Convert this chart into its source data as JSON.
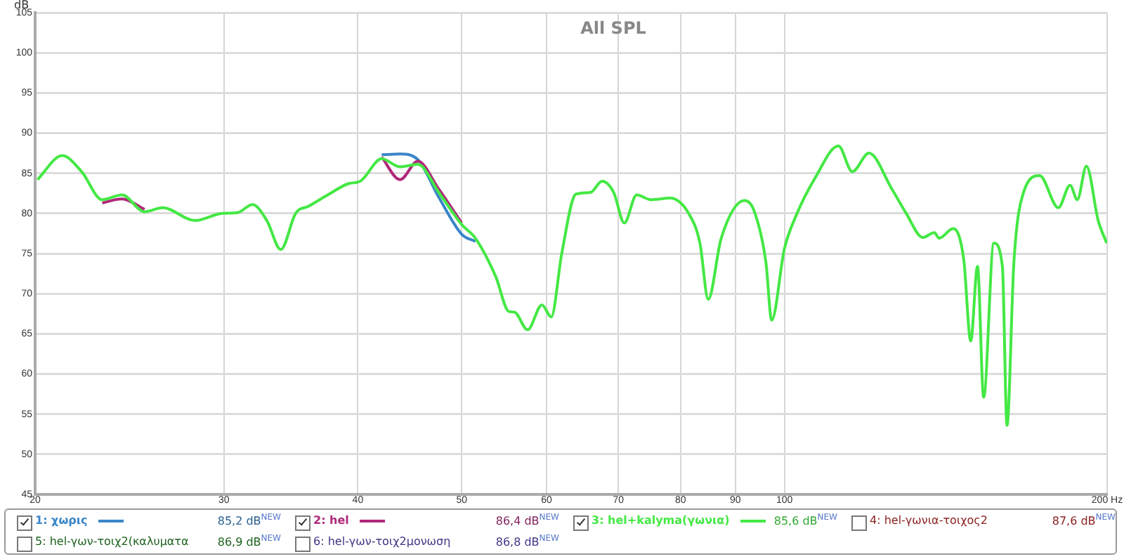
{
  "chart_data": {
    "type": "line",
    "title": "All SPL",
    "ylabel": "dB",
    "log": "x",
    "grid": true,
    "legend": "bottom",
    "marker": "none",
    "line_style": "solid",
    "x": [
      20.1,
      21.2,
      22.1,
      23.1,
      24.1,
      25.3,
      26.3,
      28.2,
      29.9,
      30.9,
      31.9,
      32.9,
      33.9,
      35.0,
      36.0,
      37.5,
      39.2,
      40.2,
      42.1,
      43.8,
      45.5,
      47.6,
      50.0,
      51.5,
      53.8,
      55.3,
      56.0,
      57.6,
      59.4,
      60.6,
      62.0,
      63.9,
      65.9,
      67.6,
      69.3,
      70.9,
      72.8,
      75.1,
      78.2,
      81.4,
      83.4,
      84.9,
      87.3,
      91.8,
      93.7,
      96.1,
      97.3,
      100,
      102.6,
      106.8,
      112.3,
      115.7,
      119.9,
      126.0,
      129.9,
      134.6,
      138.0,
      139.4,
      143.7,
      147.0,
      149.2,
      151.4,
      153.4,
      156.8,
      159.7,
      161.3,
      163.7,
      167.1,
      173.0,
      180.1,
      184.7,
      187.6,
      191.3,
      196.2,
      199.8
    ],
    "xlim": [
      20,
      200
    ],
    "xticks": [
      20,
      30,
      40,
      50,
      60,
      70,
      80,
      90,
      100,
      {
        "value": 200,
        "label": "200 Hz"
      }
    ],
    "ylim": [
      45,
      105
    ],
    "yticks": [
      45,
      50,
      55,
      60,
      65,
      70,
      75,
      80,
      85,
      90,
      95,
      100,
      105
    ],
    "series": [
      {
        "name": "1: χωρις",
        "color": "#3a86c8",
        "values": [
          null,
          null,
          null,
          null,
          null,
          null,
          null,
          null,
          null,
          null,
          null,
          null,
          null,
          null,
          null,
          null,
          null,
          null,
          87.3,
          87.4,
          86.7,
          82.0,
          77.4,
          76.5,
          null,
          null,
          null,
          null,
          null,
          null,
          null,
          null,
          null,
          null,
          null,
          null,
          null,
          null,
          null,
          null,
          null,
          null,
          null,
          null,
          null,
          null,
          null,
          null,
          null,
          null,
          null,
          null,
          null,
          null,
          null,
          null,
          null,
          null,
          null,
          null,
          null,
          null,
          null,
          null,
          null,
          null,
          null,
          null,
          null,
          null,
          null,
          null,
          null,
          null,
          null
        ]
      },
      {
        "name": "2: hel",
        "color": "#b0287a",
        "values": [
          null,
          null,
          null,
          81.3,
          81.8,
          80.5,
          null,
          null,
          null,
          null,
          null,
          null,
          null,
          null,
          null,
          null,
          null,
          null,
          87.0,
          84.2,
          86.5,
          83.0,
          78.8,
          null,
          null,
          null,
          null,
          null,
          null,
          null,
          null,
          null,
          null,
          null,
          null,
          null,
          null,
          null,
          null,
          null,
          null,
          null,
          null,
          null,
          null,
          null,
          null,
          null,
          null,
          null,
          null,
          null,
          null,
          null,
          null,
          null,
          null,
          null,
          null,
          null,
          null,
          null,
          null,
          null,
          null,
          null,
          null,
          null,
          null,
          null,
          null,
          null,
          null,
          null,
          null
        ]
      },
      {
        "name": "3: hel+kalyma(γωνια)",
        "color": "#44e844",
        "values": [
          84.2,
          87.2,
          85.2,
          81.7,
          82.3,
          80.2,
          80.7,
          79.1,
          80.0,
          80.1,
          81.1,
          79.1,
          75.5,
          80.0,
          80.9,
          82.3,
          83.7,
          84.0,
          86.8,
          85.8,
          86.1,
          82.6,
          78.6,
          76.9,
          72.1,
          67.8,
          67.7,
          65.5,
          68.6,
          67.1,
          75.1,
          82.4,
          82.6,
          84.0,
          82.6,
          78.8,
          82.3,
          81.7,
          81.9,
          80.0,
          76.3,
          69.3,
          76.9,
          81.6,
          80.3,
          73.9,
          66.7,
          75.6,
          79.8,
          84.4,
          88.4,
          85.2,
          87.5,
          83.0,
          80.0,
          77.0,
          77.6,
          76.9,
          78.1,
          74.2,
          64.1,
          73.4,
          57.1,
          76.3,
          73.4,
          53.6,
          73.9,
          82.6,
          84.7,
          80.7,
          83.5,
          81.7,
          85.9,
          79.1,
          76.3
        ]
      }
    ],
    "annotations": [
      "85,2 dB$^{NEW}$",
      "86,4 dB$^{NEW}$",
      "85,6 dB$^{NEW}$",
      "4: hel-γωνια-τοιχος2",
      "87,6 dB$^{NEW}$",
      "5: hel-γων-τοιχ2(καλυματα",
      "86,9 dB$^{NEW}$",
      "6: hel-γων-τοιχ2μονωση",
      "86,8 dB$^{NEW}$"
    ]
  }
}
